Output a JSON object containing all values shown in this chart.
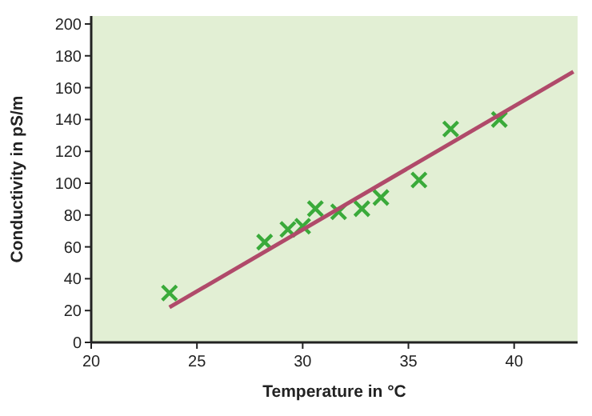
{
  "chart_data": {
    "type": "scatter",
    "xlabel": "Temperature in °C",
    "ylabel": "Conductivity in pS/m",
    "xlim": [
      20,
      43
    ],
    "xticks": [
      20,
      25,
      30,
      35,
      40
    ],
    "ylim": [
      0,
      205
    ],
    "yticks": [
      0,
      20,
      40,
      60,
      80,
      100,
      120,
      140,
      160,
      180,
      200
    ],
    "grid": false,
    "series": [
      {
        "marker": "cross",
        "color": "#3aaa3a",
        "x": [
          23.7,
          28.2,
          29.3,
          30.0,
          30.6,
          31.7,
          32.8,
          33.7,
          35.5,
          37.0,
          39.3
        ],
        "values": [
          31,
          63,
          71,
          73,
          84,
          82,
          84,
          91,
          102,
          134,
          140
        ]
      },
      {
        "type": "line",
        "color": "#b04a6a",
        "x": [
          23.7,
          42.8
        ],
        "values": [
          22,
          170
        ]
      }
    ]
  }
}
